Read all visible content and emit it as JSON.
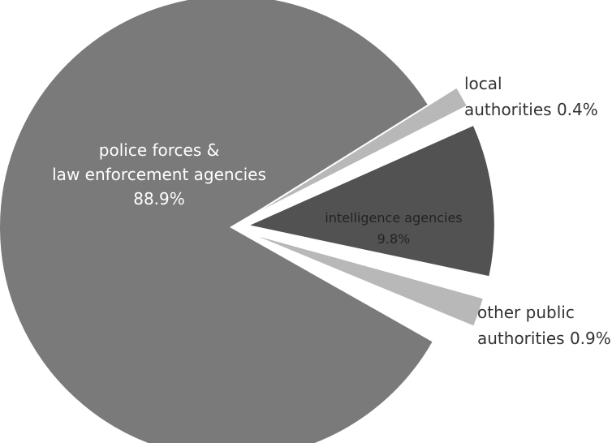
{
  "chart_data": {
    "type": "pie",
    "exploded": true,
    "slices": [
      {
        "label_lines": [
          "police forces &",
          "law enforcement agencies",
          "88.9%"
        ],
        "name": "police forces & law enforcement agencies",
        "value": 88.9,
        "color": "#7a7a7a",
        "label_color": "#ffffff"
      },
      {
        "label_lines": [
          "local",
          "authorities 0.4%"
        ],
        "name": "local authorities",
        "value": 0.4,
        "color": "#b8b8b8",
        "label_color": "#333333"
      },
      {
        "label_lines": [
          "intelligence agencies",
          "9.8%"
        ],
        "name": "intelligence agencies",
        "value": 9.8,
        "color": "#525252",
        "label_color": "#222222"
      },
      {
        "label_lines": [
          "other public",
          "authorities 0.9%"
        ],
        "name": "other public authorities",
        "value": 0.9,
        "color": "#b8b8b8",
        "label_color": "#333333"
      }
    ]
  }
}
